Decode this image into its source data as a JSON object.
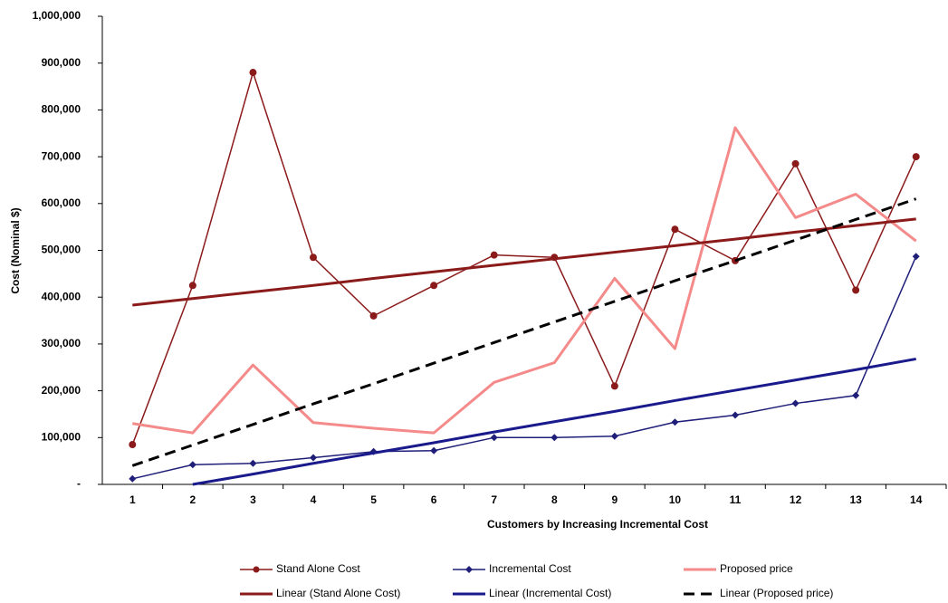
{
  "chart_data": {
    "type": "line",
    "x_label": "Customers by Increasing Incremental Cost",
    "y_label": "Cost (Nominal $)",
    "categories": [
      "1",
      "2",
      "3",
      "4",
      "5",
      "6",
      "7",
      "8",
      "9",
      "10",
      "11",
      "12",
      "13",
      "14"
    ],
    "ylim": [
      0,
      1000000
    ],
    "yticks": [
      {
        "value": 0,
        "label": "-"
      },
      {
        "value": 100000,
        "label": "100,000"
      },
      {
        "value": 200000,
        "label": "200,000"
      },
      {
        "value": 300000,
        "label": "300,000"
      },
      {
        "value": 400000,
        "label": "400,000"
      },
      {
        "value": 500000,
        "label": "500,000"
      },
      {
        "value": 600000,
        "label": "600,000"
      },
      {
        "value": 700000,
        "label": "700,000"
      },
      {
        "value": 800000,
        "label": "800,000"
      },
      {
        "value": 900000,
        "label": "900,000"
      },
      {
        "value": 1000000,
        "label": "1,000,000"
      }
    ],
    "legend": "bottom",
    "series": [
      {
        "name": "Stand Alone Cost",
        "color": "#8b1a1a",
        "marker": "circle",
        "values": [
          85000,
          425000,
          880000,
          485000,
          360000,
          425000,
          490000,
          485000,
          210000,
          545000,
          478000,
          685000,
          415000,
          700000
        ]
      },
      {
        "name": "Incremental Cost",
        "color": "#1f1f7a",
        "marker": "diamond",
        "values": [
          12000,
          42000,
          45000,
          57000,
          70000,
          72000,
          100000,
          100000,
          103000,
          133000,
          148000,
          173000,
          190000,
          487000
        ]
      },
      {
        "name": "Proposed price",
        "color": "#f48a8a",
        "marker": "none",
        "values": [
          130000,
          110000,
          255000,
          132000,
          120000,
          110000,
          218000,
          260000,
          440000,
          290000,
          762000,
          570000,
          620000,
          520000
        ]
      },
      {
        "name": "Linear (Stand Alone Cost)",
        "color": "#8b1a1a",
        "marker": "none",
        "values": [
          383000,
          397000,
          411000,
          425000,
          440000,
          454000,
          468000,
          482000,
          496000,
          510000,
          524000,
          539000,
          553000,
          567000
        ]
      },
      {
        "name": "Linear (Incremental Cost)",
        "color": "#1a1a8c",
        "marker": "none",
        "values": [
          null,
          0,
          22000,
          45000,
          67000,
          89000,
          112000,
          134000,
          156000,
          179000,
          201000,
          223000,
          245000,
          268000
        ]
      },
      {
        "name": "Linear (Proposed price)",
        "color": "#000000",
        "marker": "none",
        "dash": true,
        "values": [
          40000,
          84000,
          128000,
          172000,
          215000,
          259000,
          303000,
          347000,
          391000,
          435000,
          478000,
          522000,
          566000,
          610000
        ]
      }
    ]
  }
}
